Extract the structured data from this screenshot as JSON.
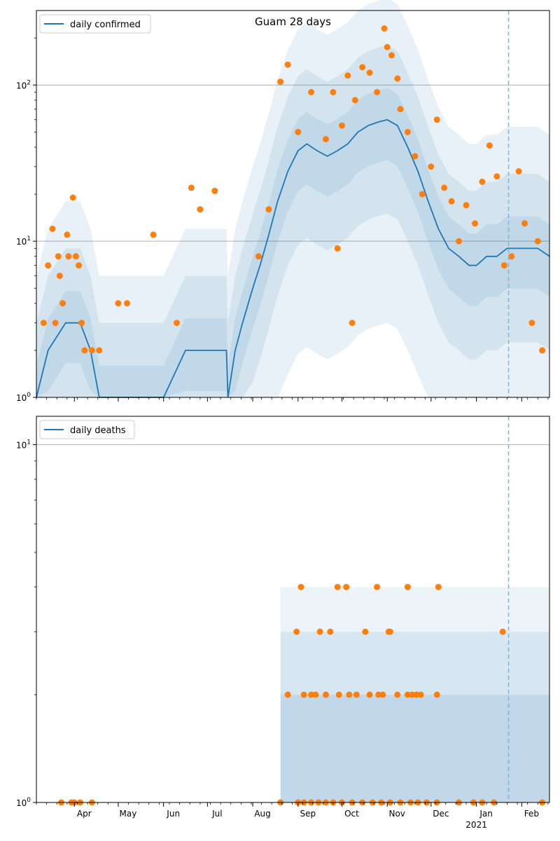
{
  "chart_data": [
    {
      "type": "line",
      "title": "Guam 28 days",
      "xlabel": "",
      "ylabel": "",
      "yscale": "log",
      "ylim": [
        1,
        300
      ],
      "xlim": [
        "2020-03-06",
        "2021-02-20"
      ],
      "grid": "horizontal major",
      "legend_position": "top-left",
      "x_tick_labels": [
        "Apr",
        "May",
        "Jun",
        "Jul",
        "Aug",
        "Sep",
        "Oct",
        "Nov",
        "Dec",
        "Jan",
        "Feb"
      ],
      "x_tick_dates": [
        "2020-04-01",
        "2020-05-01",
        "2020-06-01",
        "2020-07-01",
        "2020-08-01",
        "2020-09-01",
        "2020-10-01",
        "2020-11-01",
        "2020-12-01",
        "2021-01-01",
        "2021-02-01"
      ],
      "year_label": "2021",
      "y_tick_labels": [
        "10^0",
        "10^1",
        "10^2"
      ],
      "vertical_marker_date": "2021-01-23",
      "series": [
        {
          "name": "daily confirmed",
          "kind": "line",
          "color": "#1f77b4",
          "x": [
            "2020-03-06",
            "2020-03-14",
            "2020-03-26",
            "2020-04-05",
            "2020-04-12",
            "2020-04-18",
            "2020-05-01",
            "2020-06-01",
            "2020-06-16",
            "2020-07-14",
            "2020-07-15",
            "2020-07-20",
            "2020-07-25",
            "2020-08-01",
            "2020-08-06",
            "2020-08-12",
            "2020-08-18",
            "2020-08-25",
            "2020-09-01",
            "2020-09-07",
            "2020-09-14",
            "2020-09-21",
            "2020-09-28",
            "2020-10-05",
            "2020-10-12",
            "2020-10-19",
            "2020-10-26",
            "2020-11-01",
            "2020-11-08",
            "2020-11-15",
            "2020-11-22",
            "2020-11-29",
            "2020-12-06",
            "2020-12-13",
            "2020-12-20",
            "2020-12-27",
            "2021-01-01",
            "2021-01-08",
            "2021-01-15",
            "2021-01-22",
            "2021-01-29",
            "2021-02-05",
            "2021-02-12",
            "2021-02-20"
          ],
          "y": [
            1,
            2,
            3,
            3,
            2,
            1,
            1,
            1,
            2,
            2,
            1,
            2,
            3,
            5,
            7,
            11,
            18,
            28,
            38,
            42,
            38,
            35,
            38,
            42,
            50,
            55,
            58,
            60,
            55,
            40,
            28,
            18,
            12,
            9,
            8,
            7,
            7,
            8,
            8,
            9,
            9,
            9,
            9,
            8
          ]
        },
        {
          "name": "",
          "kind": "scatter",
          "color": "#ff7f0e",
          "points": [
            [
              "2020-03-11",
              3
            ],
            [
              "2020-03-14",
              7
            ],
            [
              "2020-03-17",
              12
            ],
            [
              "2020-03-19",
              3
            ],
            [
              "2020-03-21",
              8
            ],
            [
              "2020-03-22",
              6
            ],
            [
              "2020-03-24",
              4
            ],
            [
              "2020-03-27",
              11
            ],
            [
              "2020-03-28",
              8
            ],
            [
              "2020-03-31",
              19
            ],
            [
              "2020-04-02",
              8
            ],
            [
              "2020-04-04",
              7
            ],
            [
              "2020-04-06",
              3
            ],
            [
              "2020-04-08",
              2
            ],
            [
              "2020-04-13",
              2
            ],
            [
              "2020-04-18",
              2
            ],
            [
              "2020-05-01",
              4
            ],
            [
              "2020-05-07",
              4
            ],
            [
              "2020-05-25",
              11
            ],
            [
              "2020-06-10",
              3
            ],
            [
              "2020-06-20",
              22
            ],
            [
              "2020-06-26",
              16
            ],
            [
              "2020-07-06",
              21
            ],
            [
              "2020-08-05",
              8
            ],
            [
              "2020-08-12",
              16
            ],
            [
              "2020-08-20",
              105
            ],
            [
              "2020-08-25",
              135
            ],
            [
              "2020-09-01",
              50
            ],
            [
              "2020-09-10",
              90
            ],
            [
              "2020-09-20",
              45
            ],
            [
              "2020-09-25",
              90
            ],
            [
              "2020-10-01",
              55
            ],
            [
              "2020-10-05",
              115
            ],
            [
              "2020-10-10",
              80
            ],
            [
              "2020-10-15",
              130
            ],
            [
              "2020-10-20",
              120
            ],
            [
              "2020-10-25",
              90
            ],
            [
              "2020-10-30",
              230
            ],
            [
              "2020-11-01",
              175
            ],
            [
              "2020-11-04",
              155
            ],
            [
              "2020-11-08",
              110
            ],
            [
              "2020-11-10",
              70
            ],
            [
              "2020-11-15",
              50
            ],
            [
              "2020-11-20",
              35
            ],
            [
              "2020-11-25",
              20
            ],
            [
              "2020-12-01",
              30
            ],
            [
              "2020-12-05",
              60
            ],
            [
              "2020-12-10",
              22
            ],
            [
              "2020-12-15",
              18
            ],
            [
              "2020-12-20",
              10
            ],
            [
              "2020-12-25",
              17
            ],
            [
              "2020-12-31",
              13
            ],
            [
              "2021-01-05",
              24
            ],
            [
              "2021-01-10",
              41
            ],
            [
              "2021-01-15",
              26
            ],
            [
              "2021-01-20",
              7
            ],
            [
              "2021-01-25",
              8
            ],
            [
              "2021-01-30",
              28
            ],
            [
              "2021-02-03",
              13
            ],
            [
              "2021-02-08",
              3
            ],
            [
              "2021-02-12",
              10
            ],
            [
              "2021-02-15",
              2
            ],
            [
              "2020-09-28",
              9
            ],
            [
              "2020-10-08",
              3
            ]
          ]
        }
      ]
    },
    {
      "type": "line",
      "title": "",
      "xlabel": "",
      "ylabel": "",
      "yscale": "log",
      "ylim": [
        1,
        12
      ],
      "xlim": [
        "2020-03-06",
        "2021-02-20"
      ],
      "grid": "horizontal major",
      "legend_position": "top-left",
      "x_tick_labels": [
        "Apr",
        "May",
        "Jun",
        "Jul",
        "Aug",
        "Sep",
        "Oct",
        "Nov",
        "Dec",
        "Jan",
        "Feb"
      ],
      "x_tick_dates": [
        "2020-04-01",
        "2020-05-01",
        "2020-06-01",
        "2020-07-01",
        "2020-08-01",
        "2020-09-01",
        "2020-10-01",
        "2020-11-01",
        "2020-12-01",
        "2021-01-01",
        "2021-02-01"
      ],
      "year_label": "2021",
      "y_tick_labels": [
        "10^0",
        "10^1"
      ],
      "vertical_marker_date": "2021-01-23",
      "series": [
        {
          "name": "daily deaths",
          "kind": "line",
          "color": "#1f77b4",
          "x": [],
          "y": []
        },
        {
          "name": "",
          "kind": "scatter",
          "color": "#ff7f0e",
          "points": [
            [
              "2020-03-23",
              1
            ],
            [
              "2020-03-30",
              1
            ],
            [
              "2020-04-01",
              1
            ],
            [
              "2020-04-05",
              1
            ],
            [
              "2020-04-13",
              1
            ],
            [
              "2020-08-20",
              1
            ],
            [
              "2020-09-01",
              1
            ],
            [
              "2020-09-05",
              1
            ],
            [
              "2020-09-10",
              1
            ],
            [
              "2020-09-15",
              1
            ],
            [
              "2020-09-20",
              1
            ],
            [
              "2020-09-25",
              1
            ],
            [
              "2020-10-01",
              1
            ],
            [
              "2020-10-08",
              1
            ],
            [
              "2020-10-15",
              1
            ],
            [
              "2020-10-22",
              1
            ],
            [
              "2020-10-28",
              1
            ],
            [
              "2020-11-03",
              1
            ],
            [
              "2020-11-10",
              1
            ],
            [
              "2020-11-17",
              1
            ],
            [
              "2020-11-22",
              1
            ],
            [
              "2020-11-28",
              1
            ],
            [
              "2020-12-05",
              1
            ],
            [
              "2020-12-20",
              1
            ],
            [
              "2020-12-30",
              1
            ],
            [
              "2021-01-05",
              1
            ],
            [
              "2021-01-13",
              1
            ],
            [
              "2021-02-15",
              1
            ],
            [
              "2020-08-25",
              2
            ],
            [
              "2020-09-05",
              2
            ],
            [
              "2020-09-10",
              2
            ],
            [
              "2020-09-13",
              2
            ],
            [
              "2020-09-20",
              2
            ],
            [
              "2020-09-29",
              2
            ],
            [
              "2020-10-06",
              2
            ],
            [
              "2020-10-11",
              2
            ],
            [
              "2020-10-20",
              2
            ],
            [
              "2020-10-26",
              2
            ],
            [
              "2020-10-29",
              2
            ],
            [
              "2020-11-08",
              2
            ],
            [
              "2020-11-15",
              2
            ],
            [
              "2020-11-18",
              2
            ],
            [
              "2020-11-21",
              2
            ],
            [
              "2020-11-24",
              2
            ],
            [
              "2020-12-05",
              2
            ],
            [
              "2020-08-31",
              3
            ],
            [
              "2020-09-16",
              3
            ],
            [
              "2020-09-23",
              3
            ],
            [
              "2020-10-17",
              3
            ],
            [
              "2020-11-02",
              3
            ],
            [
              "2020-11-03",
              3
            ],
            [
              "2021-01-19",
              3
            ],
            [
              "2020-09-03",
              4
            ],
            [
              "2020-09-28",
              4
            ],
            [
              "2020-10-04",
              4
            ],
            [
              "2020-10-25",
              4
            ],
            [
              "2020-11-15",
              4
            ],
            [
              "2020-12-06",
              4
            ]
          ]
        }
      ]
    }
  ]
}
